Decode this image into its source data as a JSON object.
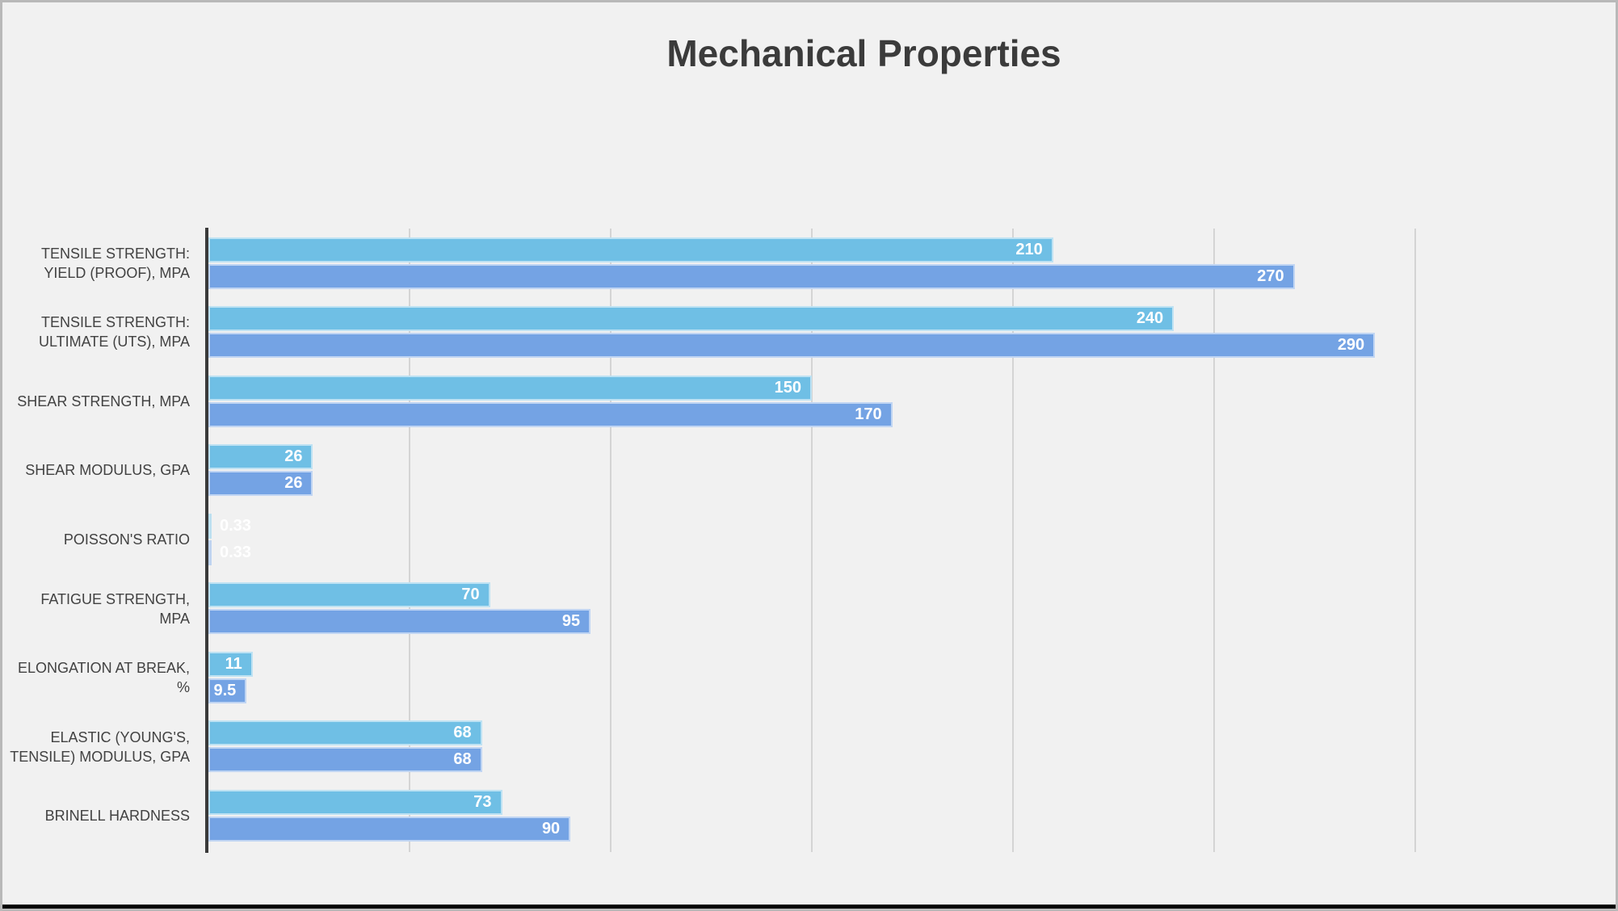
{
  "title": "Mechanical Properties",
  "colors": {
    "background": "#f1f1f1",
    "frame_border": "#b9b9b9",
    "title_text": "#3b3b3b",
    "category_text": "#424242",
    "axis_line": "#3a3a3a",
    "gridline": "#d4d4d4",
    "value_text": "#ffffff",
    "series_1": "#6fbfe5",
    "series_2": "#74a3e4"
  },
  "chart_data": {
    "type": "bar",
    "orientation": "horizontal",
    "title": "Mechanical Properties",
    "xlabel": "",
    "ylabel": "",
    "xlim": [
      0,
      350
    ],
    "gridline_step": 50,
    "grid": true,
    "legend": "none",
    "axis_tick_labels_visible": false,
    "categories": [
      "TENSILE STRENGTH:\nYIELD (PROOF), MPA",
      "TENSILE STRENGTH:\nULTIMATE (UTS), MPA",
      "SHEAR STRENGTH, MPA",
      "SHEAR MODULUS, GPA",
      "POISSON'S RATIO",
      "FATIGUE STRENGTH,\nMPA",
      "ELONGATION AT BREAK,\n%",
      "ELASTIC (YOUNG'S,\nTENSILE) MODULUS, GPA",
      "BRINELL HARDNESS"
    ],
    "series": [
      {
        "name": "series-1",
        "color": "#6fbfe5",
        "values": [
          210,
          240,
          150,
          26,
          0.33,
          70,
          11,
          68,
          73
        ],
        "labels": [
          "210",
          "240",
          "150",
          "26",
          "0.33",
          "70",
          "11",
          "68",
          "73"
        ]
      },
      {
        "name": "series-2",
        "color": "#74a3e4",
        "values": [
          270,
          290,
          170,
          26,
          0.33,
          95,
          9.5,
          68,
          90
        ],
        "labels": [
          "270",
          "290",
          "170",
          "26",
          "0.33",
          "95",
          "9.5",
          "68",
          "90"
        ]
      }
    ]
  }
}
